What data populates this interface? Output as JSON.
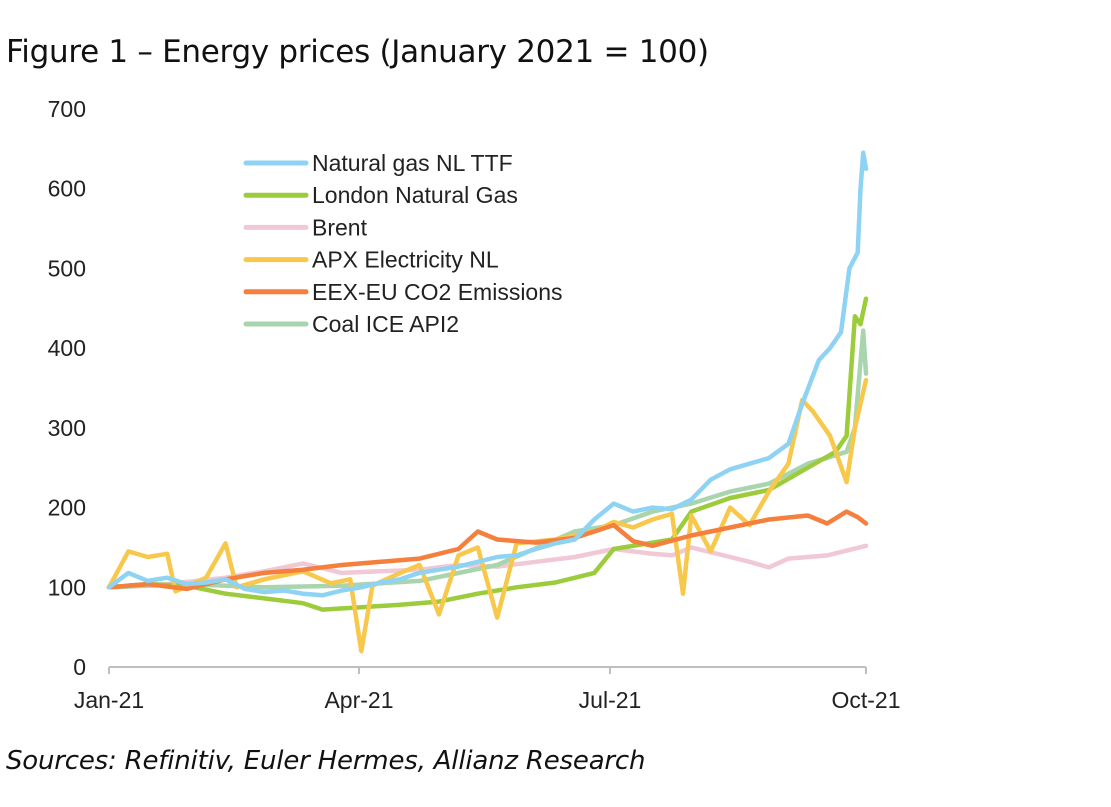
{
  "title": "Figure 1 – Energy prices (January 2021 = 100)",
  "source": "Sources: Refinitiv, Euler Hermes, Allianz Research",
  "chart_data": {
    "type": "line",
    "ylim": [
      0,
      700
    ],
    "yticks": [
      "0",
      "100",
      "200",
      "300",
      "400",
      "500",
      "600",
      "700"
    ],
    "xticks": [
      "Jan-21",
      "Apr-21",
      "Jul-21",
      "Oct-21"
    ],
    "xlim": [
      "2021-01-01",
      "2021-10-01"
    ],
    "grid": false,
    "legend_position": "top-center",
    "series": [
      {
        "name": "Natural gas NL TTF",
        "color": "#8fd3f4",
        "points": [
          [
            "2021-01-01",
            100
          ],
          [
            "2021-01-08",
            118
          ],
          [
            "2021-01-15",
            108
          ],
          [
            "2021-01-22",
            112
          ],
          [
            "2021-01-29",
            104
          ],
          [
            "2021-02-05",
            106
          ],
          [
            "2021-02-12",
            110
          ],
          [
            "2021-02-19",
            98
          ],
          [
            "2021-02-26",
            94
          ],
          [
            "2021-03-05",
            96
          ],
          [
            "2021-03-12",
            92
          ],
          [
            "2021-03-19",
            90
          ],
          [
            "2021-03-26",
            96
          ],
          [
            "2021-04-02",
            100
          ],
          [
            "2021-04-09",
            106
          ],
          [
            "2021-04-16",
            110
          ],
          [
            "2021-04-23",
            118
          ],
          [
            "2021-04-30",
            122
          ],
          [
            "2021-05-07",
            126
          ],
          [
            "2021-05-14",
            132
          ],
          [
            "2021-05-21",
            138
          ],
          [
            "2021-05-28",
            140
          ],
          [
            "2021-06-04",
            148
          ],
          [
            "2021-06-11",
            155
          ],
          [
            "2021-06-18",
            160
          ],
          [
            "2021-06-25",
            185
          ],
          [
            "2021-07-02",
            205
          ],
          [
            "2021-07-09",
            195
          ],
          [
            "2021-07-16",
            200
          ],
          [
            "2021-07-23",
            198
          ],
          [
            "2021-07-30",
            210
          ],
          [
            "2021-08-06",
            235
          ],
          [
            "2021-08-13",
            248
          ],
          [
            "2021-08-20",
            255
          ],
          [
            "2021-08-27",
            262
          ],
          [
            "2021-09-03",
            280
          ],
          [
            "2021-09-08",
            330
          ],
          [
            "2021-09-14",
            385
          ],
          [
            "2021-09-18",
            400
          ],
          [
            "2021-09-22",
            420
          ],
          [
            "2021-09-25",
            500
          ],
          [
            "2021-09-28",
            520
          ],
          [
            "2021-09-29",
            600
          ],
          [
            "2021-09-30",
            645
          ],
          [
            "2021-10-01",
            625
          ]
        ]
      },
      {
        "name": "London Natural Gas",
        "color": "#9ccc3c",
        "points": [
          [
            "2021-01-01",
            100
          ],
          [
            "2021-01-15",
            104
          ],
          [
            "2021-01-29",
            102
          ],
          [
            "2021-02-12",
            92
          ],
          [
            "2021-02-26",
            86
          ],
          [
            "2021-03-12",
            80
          ],
          [
            "2021-03-19",
            72
          ],
          [
            "2021-04-02",
            75
          ],
          [
            "2021-04-16",
            78
          ],
          [
            "2021-04-30",
            82
          ],
          [
            "2021-05-14",
            92
          ],
          [
            "2021-05-28",
            100
          ],
          [
            "2021-06-11",
            106
          ],
          [
            "2021-06-25",
            118
          ],
          [
            "2021-07-02",
            148
          ],
          [
            "2021-07-09",
            152
          ],
          [
            "2021-07-23",
            160
          ],
          [
            "2021-07-30",
            195
          ],
          [
            "2021-08-13",
            212
          ],
          [
            "2021-08-27",
            222
          ],
          [
            "2021-09-10",
            250
          ],
          [
            "2021-09-20",
            270
          ],
          [
            "2021-09-24",
            290
          ],
          [
            "2021-09-27",
            440
          ],
          [
            "2021-09-29",
            430
          ],
          [
            "2021-10-01",
            462
          ]
        ]
      },
      {
        "name": "Brent",
        "color": "#f0c8d6",
        "points": [
          [
            "2021-01-01",
            100
          ],
          [
            "2021-01-22",
            104
          ],
          [
            "2021-02-12",
            112
          ],
          [
            "2021-02-26",
            120
          ],
          [
            "2021-03-12",
            130
          ],
          [
            "2021-03-26",
            118
          ],
          [
            "2021-04-09",
            120
          ],
          [
            "2021-04-23",
            122
          ],
          [
            "2021-05-07",
            128
          ],
          [
            "2021-05-21",
            126
          ],
          [
            "2021-06-04",
            132
          ],
          [
            "2021-06-18",
            138
          ],
          [
            "2021-07-02",
            148
          ],
          [
            "2021-07-16",
            142
          ],
          [
            "2021-07-23",
            140
          ],
          [
            "2021-07-30",
            150
          ],
          [
            "2021-08-13",
            138
          ],
          [
            "2021-08-20",
            132
          ],
          [
            "2021-08-27",
            125
          ],
          [
            "2021-09-03",
            136
          ],
          [
            "2021-09-17",
            140
          ],
          [
            "2021-10-01",
            152
          ]
        ]
      },
      {
        "name": "APX Electricity NL",
        "color": "#f8c84c",
        "points": [
          [
            "2021-01-01",
            100
          ],
          [
            "2021-01-08",
            145
          ],
          [
            "2021-01-15",
            138
          ],
          [
            "2021-01-22",
            142
          ],
          [
            "2021-01-25",
            95
          ],
          [
            "2021-02-05",
            112
          ],
          [
            "2021-02-12",
            155
          ],
          [
            "2021-02-16",
            100
          ],
          [
            "2021-02-26",
            110
          ],
          [
            "2021-03-12",
            120
          ],
          [
            "2021-03-22",
            105
          ],
          [
            "2021-03-29",
            110
          ],
          [
            "2021-04-02",
            20
          ],
          [
            "2021-04-06",
            102
          ],
          [
            "2021-04-16",
            118
          ],
          [
            "2021-04-23",
            128
          ],
          [
            "2021-04-30",
            66
          ],
          [
            "2021-05-07",
            140
          ],
          [
            "2021-05-14",
            150
          ],
          [
            "2021-05-21",
            62
          ],
          [
            "2021-05-28",
            155
          ],
          [
            "2021-06-11",
            160
          ],
          [
            "2021-06-25",
            170
          ],
          [
            "2021-07-02",
            182
          ],
          [
            "2021-07-09",
            175
          ],
          [
            "2021-07-16",
            185
          ],
          [
            "2021-07-23",
            192
          ],
          [
            "2021-07-27",
            92
          ],
          [
            "2021-07-30",
            190
          ],
          [
            "2021-08-06",
            145
          ],
          [
            "2021-08-13",
            200
          ],
          [
            "2021-08-20",
            178
          ],
          [
            "2021-08-27",
            220
          ],
          [
            "2021-09-03",
            255
          ],
          [
            "2021-09-08",
            335
          ],
          [
            "2021-09-12",
            320
          ],
          [
            "2021-09-18",
            290
          ],
          [
            "2021-09-24",
            232
          ],
          [
            "2021-09-27",
            300
          ],
          [
            "2021-10-01",
            360
          ]
        ]
      },
      {
        "name": "EEX-EU CO2 Emissions",
        "color": "#f57f3c",
        "points": [
          [
            "2021-01-01",
            100
          ],
          [
            "2021-01-15",
            104
          ],
          [
            "2021-01-29",
            98
          ],
          [
            "2021-02-12",
            110
          ],
          [
            "2021-02-26",
            118
          ],
          [
            "2021-03-12",
            122
          ],
          [
            "2021-03-26",
            128
          ],
          [
            "2021-04-09",
            132
          ],
          [
            "2021-04-23",
            136
          ],
          [
            "2021-05-07",
            148
          ],
          [
            "2021-05-14",
            170
          ],
          [
            "2021-05-21",
            160
          ],
          [
            "2021-06-04",
            156
          ],
          [
            "2021-06-18",
            162
          ],
          [
            "2021-07-02",
            178
          ],
          [
            "2021-07-09",
            158
          ],
          [
            "2021-07-16",
            152
          ],
          [
            "2021-07-30",
            165
          ],
          [
            "2021-08-13",
            175
          ],
          [
            "2021-08-27",
            185
          ],
          [
            "2021-09-10",
            190
          ],
          [
            "2021-09-17",
            180
          ],
          [
            "2021-09-24",
            195
          ],
          [
            "2021-09-28",
            188
          ],
          [
            "2021-10-01",
            180
          ]
        ]
      },
      {
        "name": "Coal ICE API2",
        "color": "#a8d4ae",
        "points": [
          [
            "2021-01-01",
            100
          ],
          [
            "2021-01-29",
            104
          ],
          [
            "2021-02-26",
            100
          ],
          [
            "2021-03-26",
            102
          ],
          [
            "2021-04-23",
            108
          ],
          [
            "2021-05-21",
            128
          ],
          [
            "2021-06-18",
            170
          ],
          [
            "2021-07-02",
            178
          ],
          [
            "2021-07-16",
            195
          ],
          [
            "2021-07-30",
            205
          ],
          [
            "2021-08-13",
            220
          ],
          [
            "2021-08-27",
            230
          ],
          [
            "2021-09-10",
            255
          ],
          [
            "2021-09-24",
            270
          ],
          [
            "2021-09-27",
            300
          ],
          [
            "2021-09-30",
            422
          ],
          [
            "2021-10-01",
            368
          ]
        ]
      }
    ]
  }
}
